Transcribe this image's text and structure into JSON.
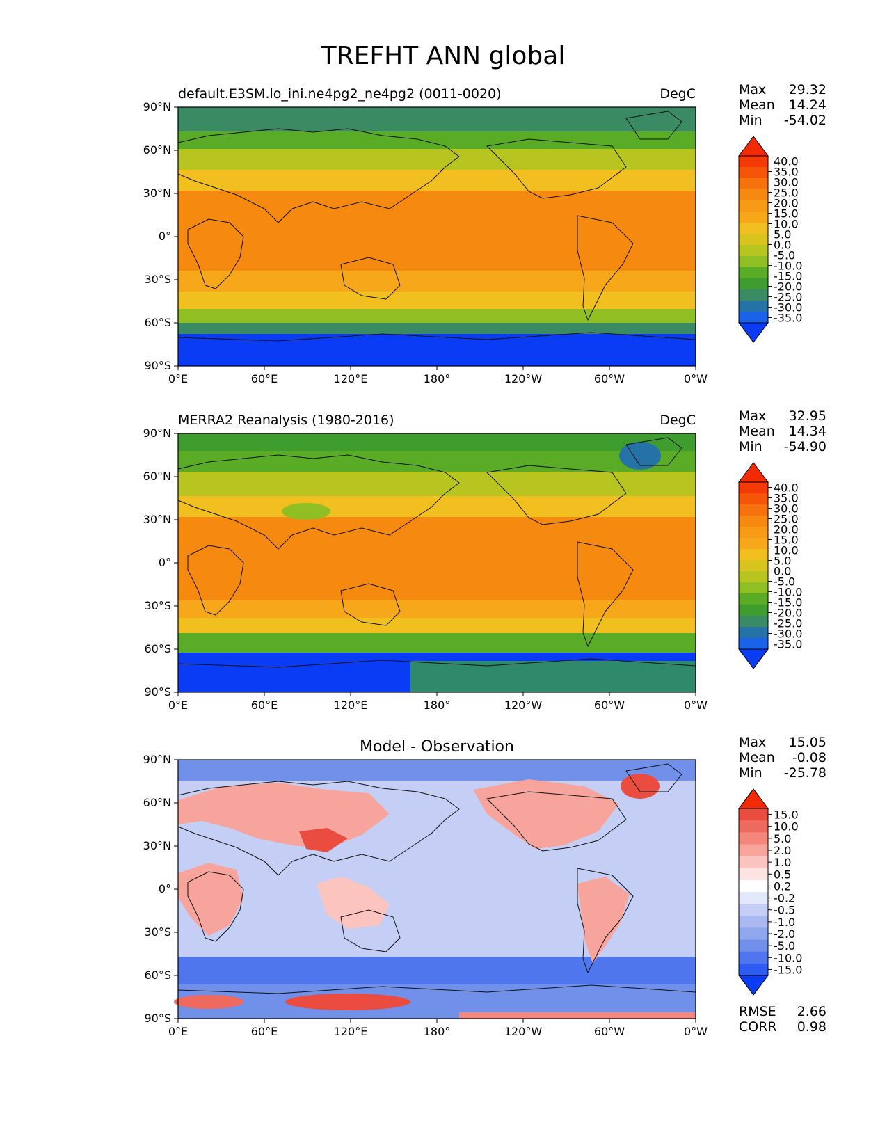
{
  "page_title": "TREFHT ANN global",
  "colors": {
    "abs_scale": [
      "#0a3cf5",
      "#1a63e8",
      "#2573a6",
      "#3a8a63",
      "#3f9c2e",
      "#5aab26",
      "#8fbf22",
      "#b8c41f",
      "#d9c31f",
      "#f1bf1f",
      "#f6a81a",
      "#f79a15",
      "#f68a10",
      "#f6720c",
      "#f55409",
      "#f53a06",
      "#f42a05"
    ],
    "diff_scale": [
      "#0a3cf5",
      "#2e5bf0",
      "#4f76ec",
      "#7090ea",
      "#8ea7ee",
      "#aab9f1",
      "#c5cff5",
      "#e3e8fa",
      "#ffffff",
      "#fde3e1",
      "#fbc4be",
      "#f7a59c",
      "#f3877c",
      "#ef6a5e",
      "#ea4d40",
      "#f42a05"
    ]
  },
  "axes_labels": {
    "lat": [
      "90°N",
      "60°N",
      "30°N",
      "0°",
      "30°S",
      "60°S",
      "90°S"
    ],
    "lon": [
      "0°E",
      "60°E",
      "120°E",
      "180°",
      "120°W",
      "60°W",
      "0°W"
    ]
  },
  "chart_data": [
    {
      "type": "heatmap",
      "panel": "test",
      "left_title": "default.E3SM.lo_ini.ne4pg2_ne4pg2 (0011-0020)",
      "right_title": "DegC",
      "stats": [
        {
          "label": "Max",
          "value": "29.32"
        },
        {
          "label": "Mean",
          "value": "14.24"
        },
        {
          "label": "Min",
          "value": "-54.02"
        }
      ],
      "colorbar_levels": [
        "40.0",
        "35.0",
        "30.0",
        "25.0",
        "20.0",
        "15.0",
        "10.0",
        "5.0",
        "0.0",
        "-5.0",
        "-10.0",
        "-15.0",
        "-20.0",
        "-25.0",
        "-30.0",
        "-35.0"
      ],
      "value_range": [
        -54.02,
        29.32
      ]
    },
    {
      "type": "heatmap",
      "panel": "reference",
      "left_title": "MERRA2 Reanalysis (1980-2016)",
      "right_title": "DegC",
      "stats": [
        {
          "label": "Max",
          "value": "32.95"
        },
        {
          "label": "Mean",
          "value": "14.34"
        },
        {
          "label": "Min",
          "value": "-54.90"
        }
      ],
      "colorbar_levels": [
        "40.0",
        "35.0",
        "30.0",
        "25.0",
        "20.0",
        "15.0",
        "10.0",
        "5.0",
        "0.0",
        "-5.0",
        "-10.0",
        "-15.0",
        "-20.0",
        "-25.0",
        "-30.0",
        "-35.0"
      ],
      "value_range": [
        -54.9,
        32.95
      ]
    },
    {
      "type": "heatmap",
      "panel": "difference",
      "center_title": "Model - Observation",
      "stats": [
        {
          "label": "Max",
          "value": "15.05"
        },
        {
          "label": "Mean",
          "value": "-0.08"
        },
        {
          "label": "Min",
          "value": "-25.78"
        }
      ],
      "colorbar_levels": [
        "15.0",
        "10.0",
        "5.0",
        "2.0",
        "1.0",
        "0.5",
        "0.2",
        "-0.2",
        "-0.5",
        "-1.0",
        "-2.0",
        "-5.0",
        "-10.0",
        "-15.0"
      ],
      "value_range": [
        -25.78,
        15.05
      ],
      "metrics": [
        {
          "label": "RMSE",
          "value": "2.66"
        },
        {
          "label": "CORR",
          "value": "0.98"
        }
      ]
    }
  ]
}
